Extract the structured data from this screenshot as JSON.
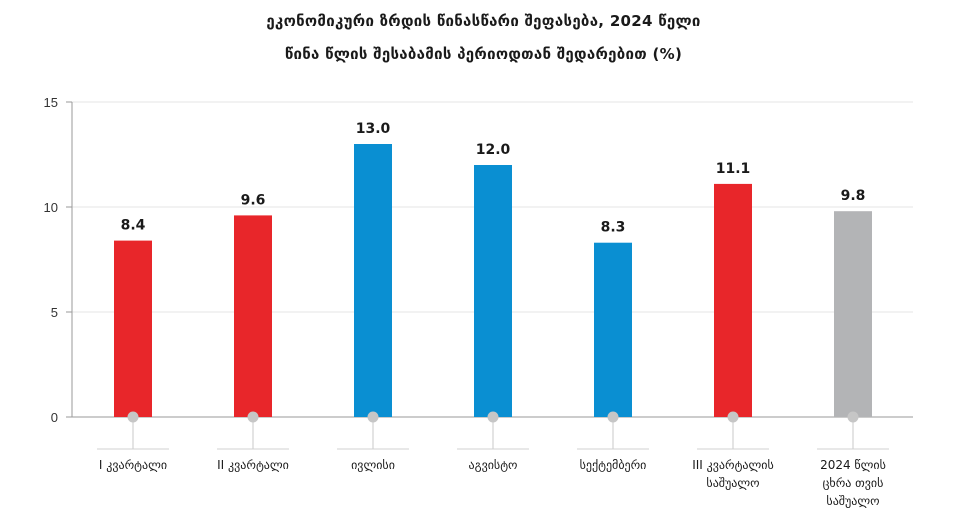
{
  "chart_data": {
    "type": "bar",
    "title": "ეკონომიკური ზრდის წინასწარი შეფასება,  2024 წელი",
    "subtitle": "წინა წლის შესაბამის პერიოდთან შედარებით (%)",
    "categories": [
      "I კვარტალი",
      "II კვარტალი",
      "ივლისი",
      "აგვისტო",
      "სექტემბერი",
      "III კვარტალის საშუალო",
      "2024 წლის ცხრა თვის საშუალო"
    ],
    "category_lines": [
      [
        "I კვარტალი"
      ],
      [
        "II კვარტალი"
      ],
      [
        "ივლისი"
      ],
      [
        "აგვისტო"
      ],
      [
        "სექტემბერი"
      ],
      [
        "III კვარტალის",
        "საშუალო"
      ],
      [
        "2024 წლის",
        "ცხრა თვის",
        "საშუალო"
      ]
    ],
    "values": [
      8.4,
      9.6,
      13.0,
      12.0,
      8.3,
      11.1,
      9.8
    ],
    "value_labels": [
      "8.4",
      "9.6",
      "13.0",
      "12.0",
      "8.3",
      "11.1",
      "9.8"
    ],
    "bar_colors": [
      "#e8262a",
      "#e8262a",
      "#0a8fd2",
      "#0a8fd2",
      "#0a8fd2",
      "#e8262a",
      "#b3b4b6"
    ],
    "ylim": [
      0,
      15
    ],
    "yticks": [
      0,
      5,
      10,
      15
    ],
    "xlabel": "",
    "ylabel": "",
    "grid": true,
    "legend": "none"
  }
}
